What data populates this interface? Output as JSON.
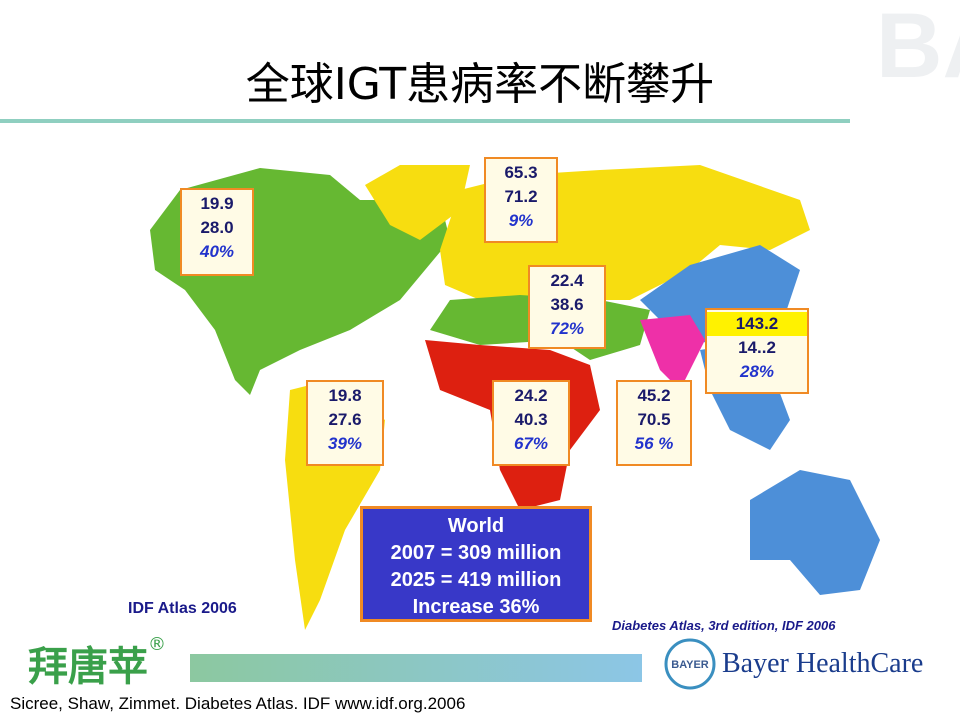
{
  "header": {
    "title": "全球IGT患病率不断攀升"
  },
  "watermark": "BAYER",
  "regions": [
    {
      "lines": [
        "19.9",
        "28.0",
        "40%"
      ]
    },
    {
      "lines": [
        "65.3",
        "71.2",
        "9%"
      ]
    },
    {
      "lines": [
        "22.4",
        "38.6",
        "72%"
      ]
    },
    {
      "lines": [
        "19.8",
        "27.6",
        "39%"
      ]
    },
    {
      "lines": [
        "24.2",
        "40.3",
        "67%"
      ]
    },
    {
      "lines": [
        "45.2",
        "70.5",
        "56 %"
      ]
    },
    {
      "lines": [
        "143.2",
        "14..2",
        "28%"
      ]
    }
  ],
  "world": {
    "lines": [
      "World",
      "2007 = 309 million",
      "2025 = 419 million",
      "Increase 36%"
    ]
  },
  "source_left": "IDF Atlas 2006",
  "source_right": "Diabetes Atlas, 3rd edition, IDF 2006",
  "brand": {
    "name": "拜唐苹",
    "mark": "®"
  },
  "logo": {
    "text": "BAYER",
    "company": "Bayer HealthCare"
  },
  "footer": "Sicree, Shaw, Zimmet. Diabetes Atlas. IDF www.idf.org.2006"
}
